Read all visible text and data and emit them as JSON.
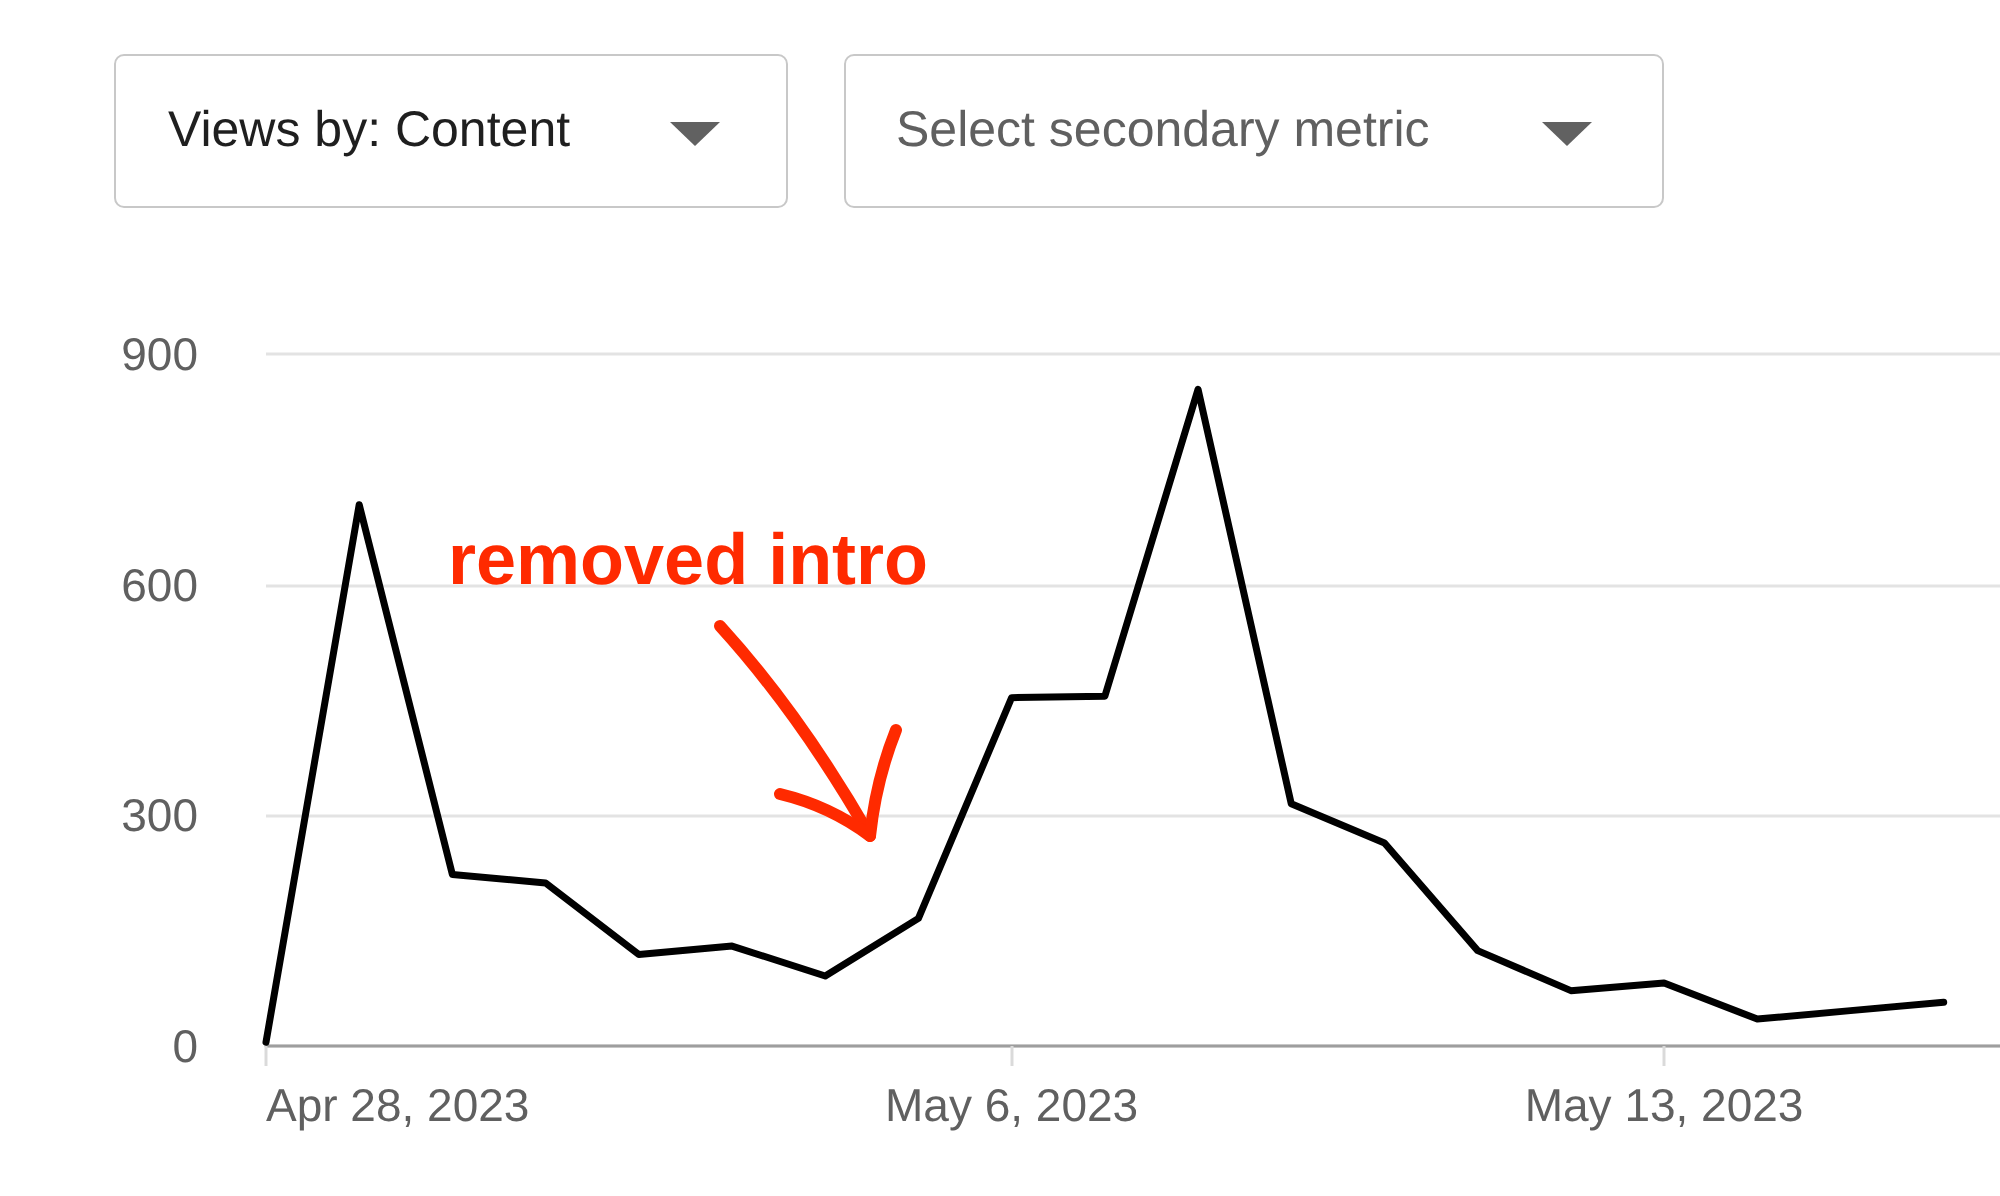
{
  "chart_data": {
    "type": "line",
    "title": "Views by: Content",
    "annotations": [
      "Select secondary metric",
      "removed intro"
    ],
    "x": [
      "2023-04-28",
      "2023-04-29",
      "2023-04-30",
      "2023-05-01",
      "2023-05-02",
      "2023-05-03",
      "2023-05-04",
      "2023-05-05",
      "2023-05-06",
      "2023-05-07",
      "2023-05-08",
      "2023-05-09",
      "2023-05-10",
      "2023-05-11",
      "2023-05-12",
      "2023-05-13",
      "2023-05-14",
      "2023-05-15",
      "2023-05-16"
    ],
    "series": [
      {
        "color": "#000000",
        "values": [
          5,
          704,
          223,
          212,
          119,
          130,
          91,
          166,
          453,
          455,
          854,
          315,
          264,
          124,
          72,
          82,
          35,
          46,
          57
        ]
      }
    ],
    "xlim": [
      "2023-04-28",
      "2023-05-16T14:30"
    ],
    "xticks": [
      {
        "value": "2023-04-28",
        "label": "Apr 28, 2023"
      },
      {
        "value": "2023-05-06",
        "label": "May 6, 2023"
      },
      {
        "value": "2023-05-13",
        "label": "May 13, 2023"
      }
    ],
    "ylim": [
      0,
      900
    ],
    "yticks": [
      0,
      300,
      600,
      900
    ],
    "grid": "y",
    "marker": "none",
    "line_style": "solid"
  }
}
